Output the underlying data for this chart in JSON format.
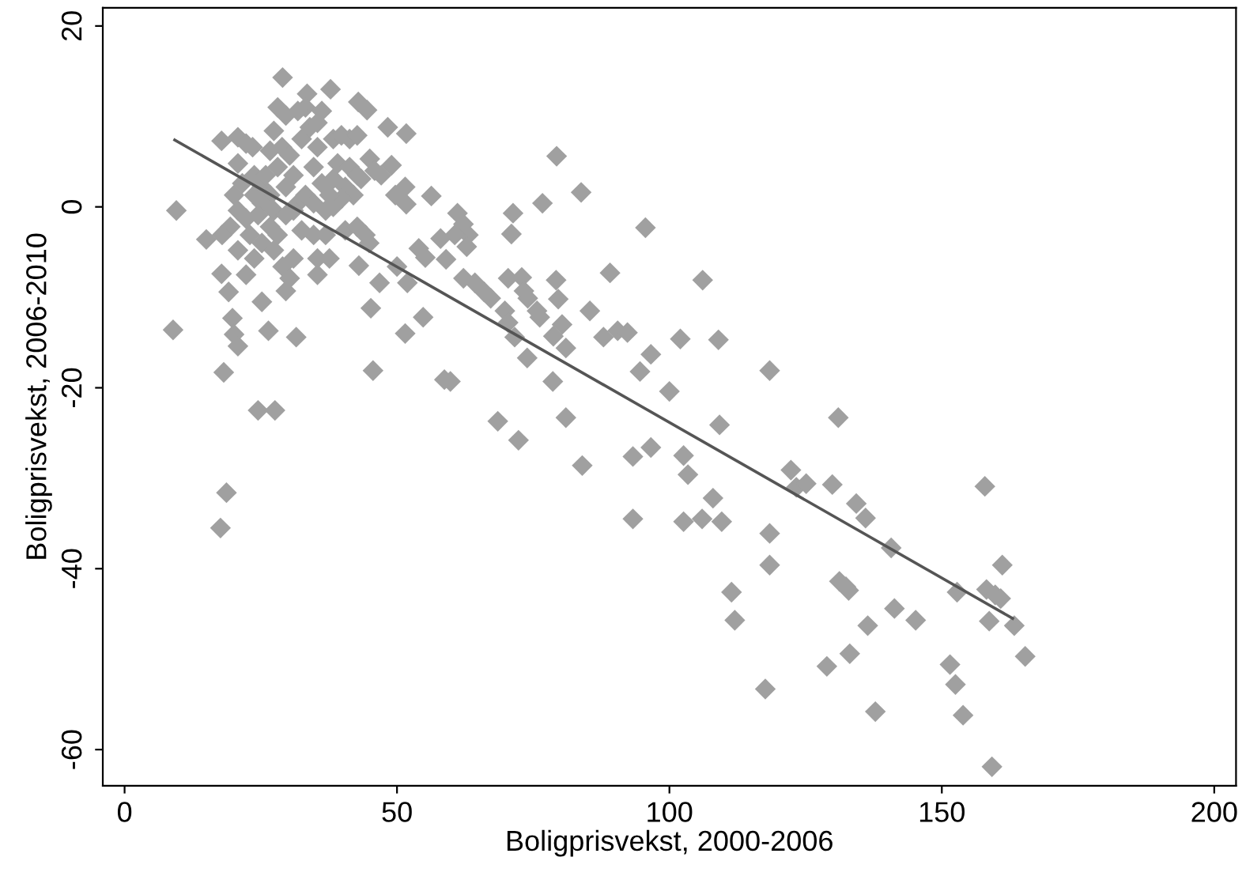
{
  "chart_data": {
    "type": "scatter",
    "xlabel": "Boligprisvekst, 2000-2006",
    "ylabel": "Boligprisvekst, 2006-2010",
    "xlim": [
      -4,
      204
    ],
    "ylim": [
      -64,
      22
    ],
    "xticks": [
      0,
      50,
      100,
      150,
      200
    ],
    "yticks": [
      -60,
      -40,
      -20,
      0,
      20
    ],
    "grid": false,
    "series": [
      {
        "color": "#a0a0a0",
        "marker": "diamond",
        "x": [
          9.5,
          8.9,
          15,
          17.8,
          17.8,
          19.1,
          19.8,
          20.1,
          20.8,
          18.2,
          18.7,
          17.6,
          24.5,
          27.6,
          26.4,
          25.2,
          31.5,
          29,
          33.5,
          37.8,
          42.9,
          44.5,
          48.3,
          51.7,
          49,
          45,
          45.2,
          45.6,
          46.8,
          43,
          50,
          51.5,
          51.9,
          54.8,
          54,
          55.2,
          56.3,
          51.5,
          49.7,
          51.7,
          58,
          59,
          58.7,
          59.8,
          61.1,
          62.2,
          63.1,
          62.8,
          60.6,
          62.2,
          64.3,
          66,
          67.2,
          68.5,
          71.3,
          71,
          70.4,
          69.8,
          70.4,
          71.6,
          72.3,
          72.9,
          73.3,
          74,
          73.9,
          75.7,
          76.2,
          76.7,
          79.3,
          79.2,
          79.6,
          78.7,
          78.6,
          80.3,
          81,
          81,
          83.8,
          84,
          85.4,
          89.1,
          87.9,
          90.5,
          92.3,
          93.3,
          93.3,
          94.6,
          95.6,
          96.6,
          96.6,
          100,
          102,
          102.6,
          103.4,
          102.6,
          106.1,
          106,
          108,
          109,
          109.2,
          109.6,
          111.4,
          112,
          118.4,
          118.4,
          118.4,
          117.6,
          122.3,
          123.3,
          125.1,
          129.9,
          128.9,
          131,
          131.2,
          132.4,
          132.9,
          133.1,
          134.3,
          136,
          136.4,
          137.8,
          140.7,
          141.3,
          145.2,
          151.5,
          152.5,
          152.8,
          153.9,
          157.9,
          158.2,
          158.7,
          159.2,
          159.8,
          161.1,
          160.8,
          163.3,
          165.3,
          20.8,
          22.3,
          23.5,
          20.8,
          21.6,
          20.1,
          20.8,
          22.3,
          19.4,
          23,
          17.9,
          20.8,
          23.8,
          25.2,
          22.3,
          23.8,
          25.2,
          26.7,
          25.2,
          27.4,
          26.7,
          28.1,
          27.4,
          29,
          30.3,
          29.6,
          31,
          27.4,
          28.1,
          29.6,
          28.9,
          30.3,
          28.1,
          31,
          29.6,
          31.8,
          33.2,
          32.5,
          34,
          33.2,
          35.4,
          35.4,
          34.7,
          36.2,
          34.7,
          32.5,
          34.7,
          36.9,
          35.4,
          35.4,
          37.6,
          38.3,
          39.8,
          41.3,
          42.7,
          39.1,
          41.3,
          42.7,
          40.5,
          42,
          39.8,
          38.3,
          40.5,
          42.7,
          44.2,
          44.9,
          45.9,
          47.1,
          43.4,
          37.6,
          36.9,
          31,
          29.6,
          24.5,
          23.8,
          25.9,
          26.7,
          31.8,
          36.2,
          38.3
        ],
        "values": [
          -0.4,
          -13.6,
          -3.6,
          7.3,
          -7.4,
          -9.4,
          -12.3,
          -14.1,
          -15.4,
          -18.3,
          -31.6,
          -35.5,
          -22.5,
          -22.5,
          -13.7,
          -10.5,
          -14.4,
          14.3,
          12.5,
          13,
          11.6,
          10.7,
          8.8,
          8.1,
          4.6,
          5.3,
          -11.2,
          -18.1,
          -8.4,
          -6.5,
          -6.6,
          -14,
          -8.4,
          -12.2,
          -4.6,
          -5.6,
          1.2,
          2.2,
          1.3,
          0.3,
          -3.5,
          -5.8,
          -19.1,
          -19.3,
          -0.7,
          -1.9,
          -3.1,
          -4.4,
          -3.1,
          -7.9,
          -8.4,
          -9.4,
          -10.1,
          -23.7,
          -0.7,
          -3,
          -7.9,
          -11.5,
          -12.8,
          -14.4,
          -25.8,
          -7.8,
          -9.3,
          -10.1,
          -16.7,
          -11.5,
          -12.2,
          0.4,
          5.6,
          -8.1,
          -10.2,
          -14.3,
          -19.3,
          -13,
          -15.6,
          -23.3,
          1.6,
          -28.6,
          -11.5,
          -7.3,
          -14.4,
          -13.7,
          -13.9,
          -27.6,
          -34.5,
          -18.2,
          -2.3,
          -16.3,
          -26.6,
          -20.4,
          -14.6,
          -27.5,
          -29.6,
          -34.8,
          -8.1,
          -34.5,
          -32.2,
          -14.7,
          -24.1,
          -34.8,
          -42.6,
          -45.7,
          -18.1,
          -36.1,
          -39.6,
          -53.3,
          -29.1,
          -31,
          -30.6,
          -30.7,
          -50.8,
          -23.3,
          -41.4,
          -42,
          -42.4,
          -49.4,
          -32.8,
          -34.4,
          -46.3,
          -55.8,
          -37.7,
          -44.4,
          -45.7,
          -50.6,
          -52.8,
          -42.6,
          -56.2,
          -30.9,
          -42.3,
          -45.8,
          -61.9,
          -42.9,
          -39.6,
          -43.3,
          -46.3,
          -49.7,
          7.7,
          7,
          6.6,
          4.8,
          2.6,
          1.3,
          -0.4,
          -1.3,
          -2.2,
          -3.1,
          -3.1,
          -4.8,
          -5.7,
          -4,
          -7.5,
          3.5,
          2.2,
          1.3,
          0.4,
          -0.4,
          -2.2,
          -3.1,
          -4.8,
          -6.6,
          -7.9,
          -9.3,
          -5.7,
          8.4,
          11,
          10.1,
          6.6,
          5.7,
          4.4,
          3.5,
          2.2,
          0.4,
          1.3,
          7.5,
          8.8,
          11,
          9.3,
          6.6,
          4.4,
          2.6,
          0.4,
          -2.6,
          -3.1,
          -3.1,
          -5.7,
          -7.5,
          -5.7,
          7.5,
          7.9,
          7.5,
          7.9,
          4.8,
          4.4,
          3.5,
          2.2,
          1.3,
          0.9,
          0,
          -2.6,
          -2.2,
          -3.1,
          -4,
          4,
          3.5,
          3.1,
          1.3,
          -0.4,
          -0.4,
          -0.9,
          -0.9,
          1.3,
          3.5,
          6.2,
          10.6,
          10.6,
          3.1
        ]
      },
      {
        "type": "line",
        "color": "#555555",
        "line_style": "solid",
        "x": [
          9.2,
          163
        ],
        "values": [
          7.4,
          -45.5
        ]
      }
    ]
  }
}
